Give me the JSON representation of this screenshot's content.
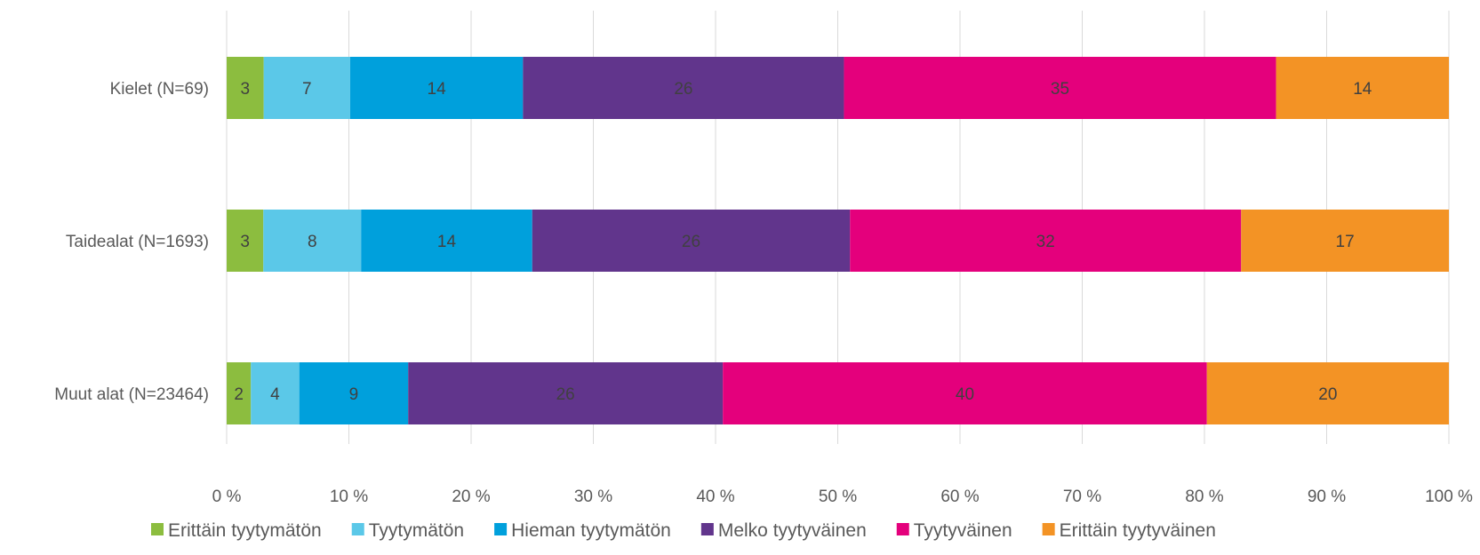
{
  "chart_data": {
    "type": "bar",
    "orientation": "horizontal",
    "stacked": "percent",
    "categories": [
      "Kielet (N=69)",
      "Taidealat (N=1693)",
      "Muut alat (N=23464)"
    ],
    "series": [
      {
        "name": "Erittäin tyytymätön",
        "color": "#8cbd3f",
        "values": [
          3,
          3,
          2
        ]
      },
      {
        "name": "Tyytymätön",
        "color": "#5bc8e8",
        "values": [
          7,
          8,
          4
        ]
      },
      {
        "name": "Hieman tyytymätön",
        "color": "#00a0dc",
        "values": [
          14,
          14,
          9
        ]
      },
      {
        "name": "Melko tyytyväinen",
        "color": "#61358c",
        "values": [
          26,
          26,
          26
        ]
      },
      {
        "name": "Tyytyväinen",
        "color": "#e4007c",
        "values": [
          35,
          32,
          40
        ]
      },
      {
        "name": "Erittäin tyytyväinen",
        "color": "#f39325",
        "values": [
          14,
          17,
          20
        ]
      }
    ],
    "xlim": [
      0,
      100
    ],
    "x_ticks": [
      "0 %",
      "10 %",
      "20 %",
      "30 %",
      "40 %",
      "50 %",
      "60 %",
      "70 %",
      "80 %",
      "90 %",
      "100 %"
    ],
    "grid": true,
    "legend_position": "bottom",
    "title": "",
    "xlabel": "",
    "ylabel": ""
  }
}
